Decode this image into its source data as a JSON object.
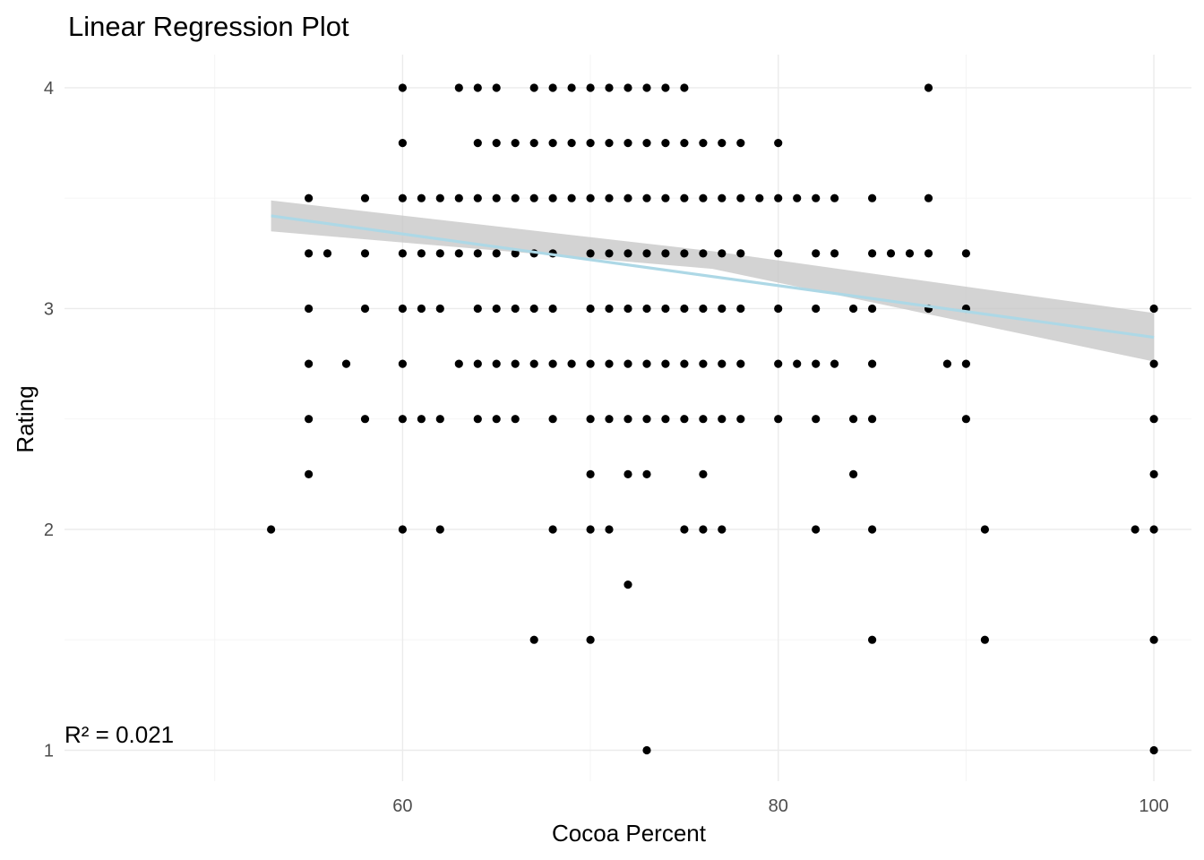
{
  "chart_data": {
    "type": "scatter",
    "title": "Linear Regression Plot",
    "xlabel": "Cocoa Percent",
    "ylabel": "Rating",
    "xlim": [
      42,
      102
    ],
    "ylim": [
      0.86,
      4.15
    ],
    "x_ticks": [
      60,
      80,
      100
    ],
    "x_tick_labels": [
      "60",
      "80",
      "100"
    ],
    "x_minor_ticks": [
      50,
      70,
      90
    ],
    "y_ticks": [
      1,
      2,
      3,
      4
    ],
    "y_tick_labels": [
      "1",
      "2",
      "3",
      "4"
    ],
    "y_minor_ticks": [
      1.5,
      2.5,
      3.5
    ],
    "grid": true,
    "legend": "none",
    "annotation": {
      "text": "R² = 0.021",
      "x": 42,
      "y": 1.07
    },
    "regression": {
      "x_range": [
        53,
        100
      ],
      "y_start": 3.42,
      "y_end": 2.87,
      "ci_lower_start": 3.35,
      "ci_upper_start": 3.49,
      "ci_lower_mid": 3.18,
      "ci_upper_mid": 3.26,
      "ci_lower_end": 2.76,
      "ci_upper_end": 2.98,
      "line_color": "#add8e6",
      "band_color": "#c8c8c8"
    },
    "point_color": "#000000",
    "points_by_rating": [
      {
        "y": 4.0,
        "x": [
          60,
          63,
          64,
          65,
          67,
          68,
          69,
          70,
          71,
          72,
          73,
          74,
          75,
          88
        ]
      },
      {
        "y": 3.75,
        "x": [
          60,
          64,
          65,
          66,
          67,
          68,
          69,
          70,
          71,
          72,
          73,
          74,
          75,
          76,
          77,
          78,
          80
        ]
      },
      {
        "y": 3.5,
        "x": [
          55,
          58,
          60,
          61,
          62,
          63,
          64,
          65,
          66,
          67,
          68,
          69,
          70,
          71,
          72,
          73,
          74,
          75,
          76,
          77,
          78,
          79,
          80,
          81,
          82,
          83,
          85,
          88
        ]
      },
      {
        "y": 3.25,
        "x": [
          55,
          56,
          58,
          60,
          61,
          62,
          63,
          64,
          65,
          66,
          67,
          68,
          70,
          71,
          72,
          73,
          74,
          75,
          76,
          77,
          78,
          80,
          82,
          83,
          85,
          86,
          87,
          88,
          90
        ]
      },
      {
        "y": 3.0,
        "x": [
          55,
          58,
          60,
          61,
          62,
          64,
          65,
          66,
          67,
          68,
          70,
          71,
          72,
          73,
          74,
          75,
          76,
          77,
          78,
          80,
          82,
          84,
          85,
          88,
          90,
          100
        ]
      },
      {
        "y": 2.75,
        "x": [
          55,
          57,
          60,
          63,
          64,
          65,
          66,
          67,
          68,
          69,
          70,
          71,
          72,
          73,
          74,
          75,
          76,
          77,
          78,
          80,
          81,
          82,
          83,
          85,
          89,
          90,
          100
        ]
      },
      {
        "y": 2.5,
        "x": [
          55,
          58,
          60,
          61,
          62,
          64,
          65,
          66,
          68,
          70,
          71,
          72,
          73,
          74,
          75,
          76,
          77,
          78,
          80,
          82,
          84,
          85,
          90,
          100
        ]
      },
      {
        "y": 2.25,
        "x": [
          55,
          70,
          72,
          73,
          76,
          84,
          100
        ]
      },
      {
        "y": 2.0,
        "x": [
          53,
          60,
          62,
          68,
          70,
          71,
          75,
          76,
          77,
          82,
          85,
          91,
          99,
          100
        ]
      },
      {
        "y": 1.75,
        "x": [
          72
        ]
      },
      {
        "y": 1.5,
        "x": [
          67,
          70,
          85,
          91,
          100
        ]
      },
      {
        "y": 1.0,
        "x": [
          73,
          100
        ]
      }
    ]
  }
}
